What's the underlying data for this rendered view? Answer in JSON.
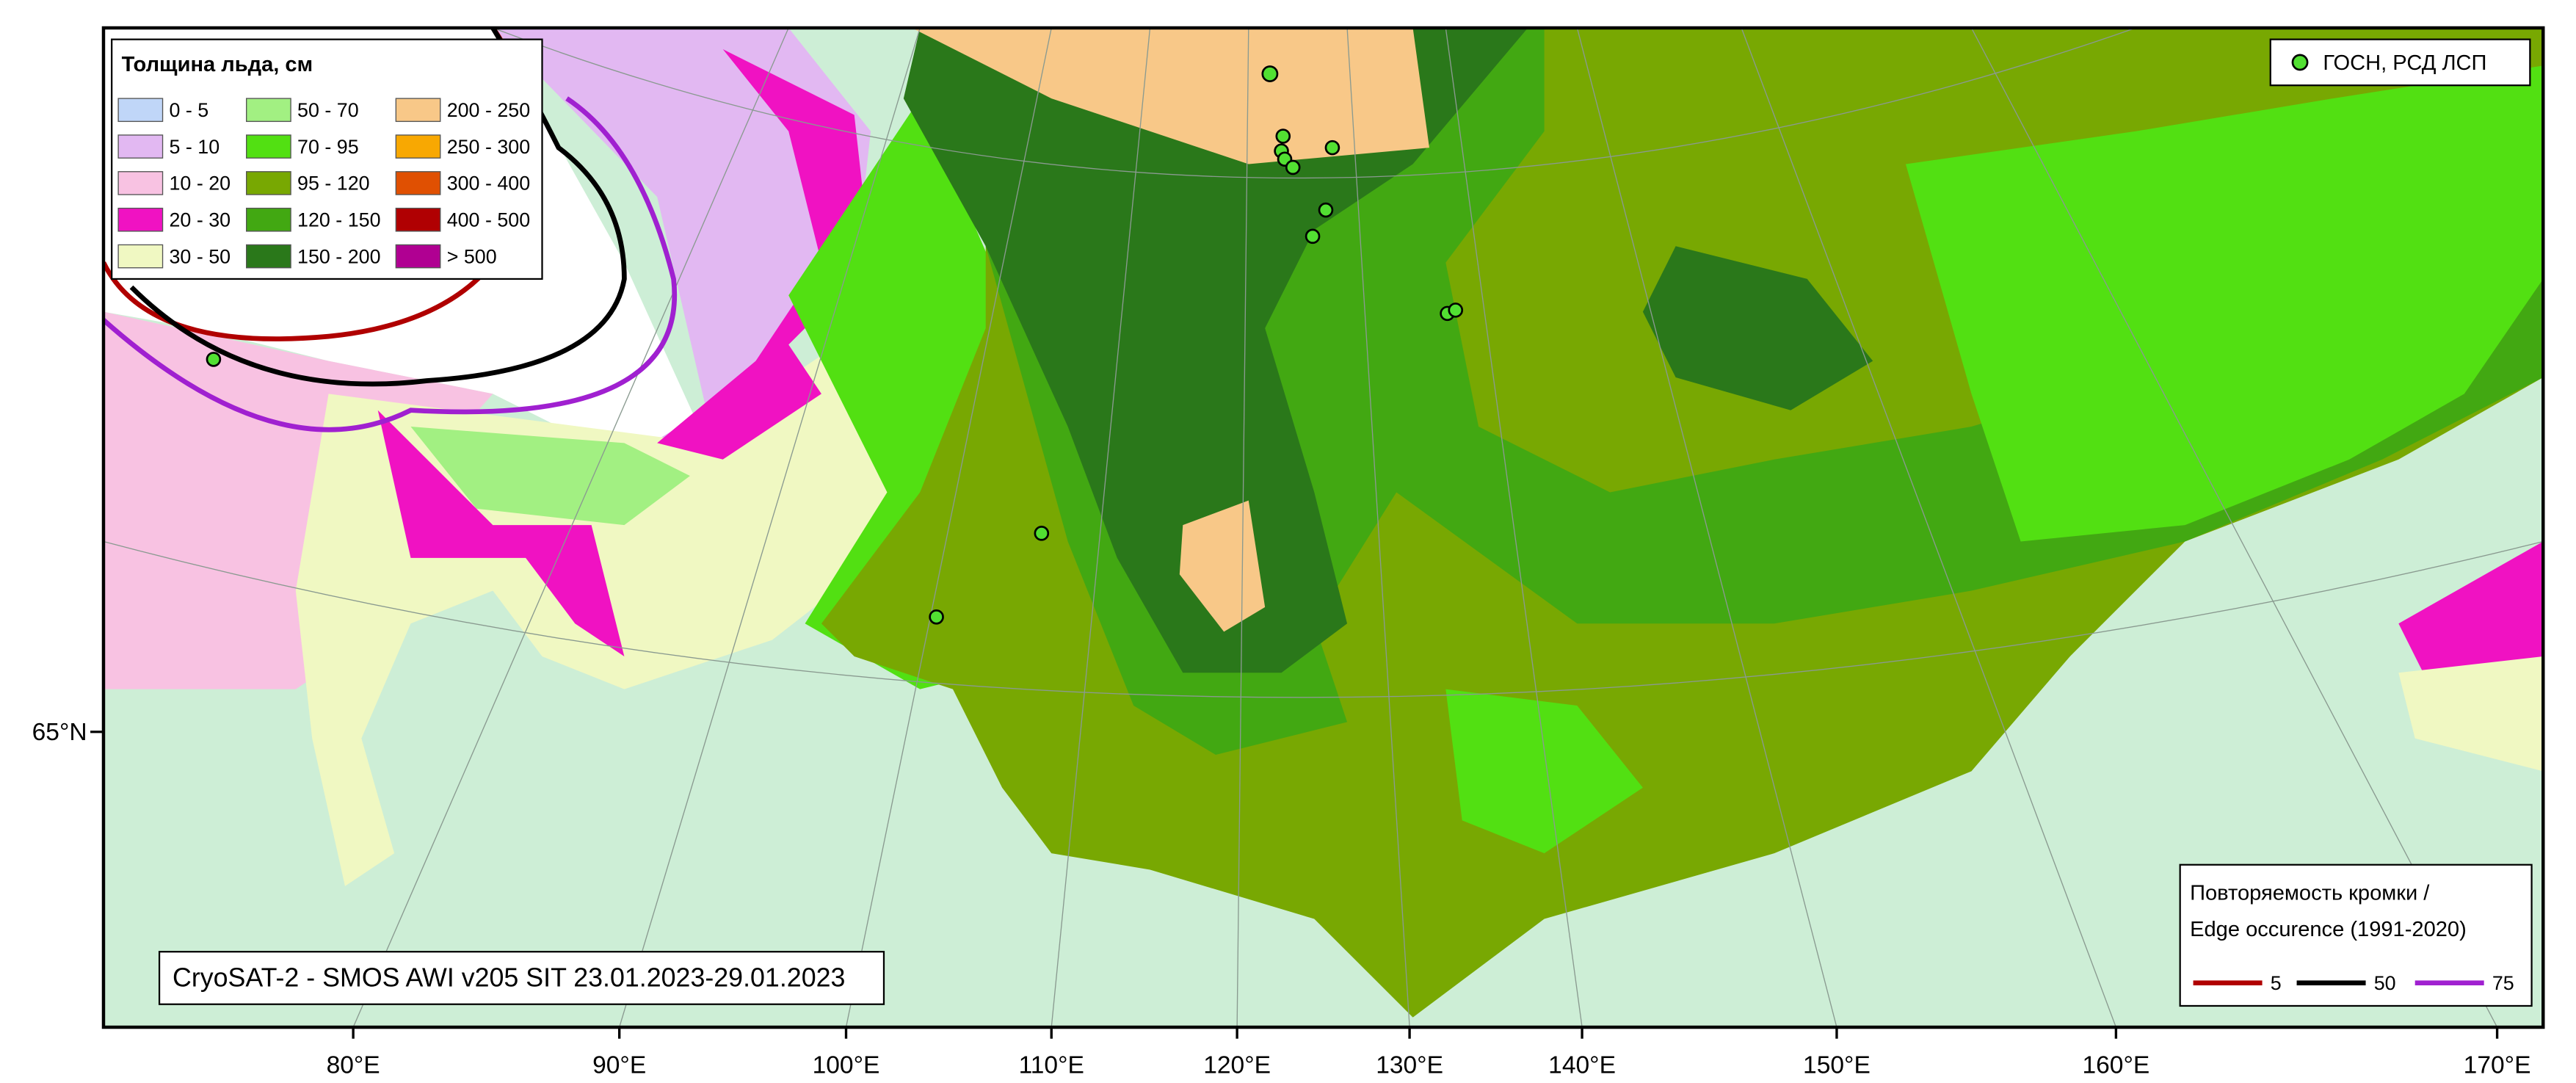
{
  "legend": {
    "title": "Толщина льда, см",
    "items": [
      {
        "label": "0 - 5",
        "color": "#c0d6f8"
      },
      {
        "label": "5 - 10",
        "color": "#e2b8f2"
      },
      {
        "label": "10 - 20",
        "color": "#f8c2e2"
      },
      {
        "label": "20 - 30",
        "color": "#f012c2"
      },
      {
        "label": "30 - 50",
        "color": "#f0f8c2"
      },
      {
        "label": "50 - 70",
        "color": "#a2f082"
      },
      {
        "label": "70 - 95",
        "color": "#52e012"
      },
      {
        "label": "95 - 120",
        "color": "#78a802"
      },
      {
        "label": "120 - 150",
        "color": "#42a812"
      },
      {
        "label": "150 - 200",
        "color": "#2a781a"
      },
      {
        "label": "200 - 250",
        "color": "#f8c888"
      },
      {
        "label": "250 - 300",
        "color": "#f8a802"
      },
      {
        "label": "300 - 400",
        "color": "#e05002"
      },
      {
        "label": "400 - 500",
        "color": "#b00002"
      },
      {
        "label": "> 500",
        "color": "#b00092"
      }
    ]
  },
  "stations_legend": "ГОСН, РСД ЛСП",
  "edge_legend": {
    "title": [
      "Повторяемость кромки /",
      "Edge occurence (1991-2020)"
    ],
    "items": [
      {
        "label": "5",
        "color": "#b00000"
      },
      {
        "label": "50",
        "color": "#000000"
      },
      {
        "label": "75",
        "color": "#a020d0"
      }
    ]
  },
  "caption": "CryoSAT-2 - SMOS AWI v205 SIT 23.01.2023-29.01.2023",
  "axes": {
    "x_labels": [
      "80°E",
      "90°E",
      "100°E",
      "110°E",
      "120°E",
      "130°E",
      "140°E",
      "150°E",
      "160°E",
      "170°E"
    ],
    "y_labels": [
      "65°N"
    ]
  }
}
